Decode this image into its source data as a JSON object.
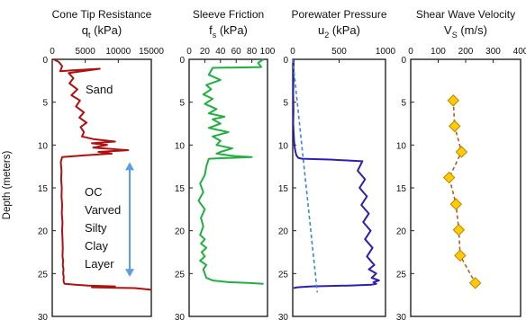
{
  "figure": {
    "y_axis_label": "Depth (meters)",
    "annotations": {
      "sand": "Sand",
      "clay_lines": [
        "OC",
        "Varved",
        "Silty",
        "Clay",
        "Layer"
      ]
    }
  },
  "chart_data": [
    {
      "type": "line",
      "title": "Cone Tip Resistance",
      "xlabel_main": "q",
      "xlabel_sub": "t",
      "xlabel_unit": "(kPa)",
      "xlim": [
        0,
        15000
      ],
      "xticks": [
        "0",
        "5000",
        "10000",
        "15000"
      ],
      "ylim": [
        0,
        30
      ],
      "yticks": [
        "0",
        "5",
        "10",
        "15",
        "20",
        "25",
        "30"
      ],
      "y_inverted": true,
      "series": [
        {
          "color": "#b01010",
          "x": [
            200,
            1000,
            1500,
            1200,
            2800,
            7200,
            2500,
            3200,
            2600,
            3800,
            2900,
            4200,
            3600,
            4800,
            4100,
            5200,
            4300,
            4800,
            4500,
            6200,
            9500,
            6000,
            8300,
            6200,
            11500,
            7000,
            9000,
            5000,
            1500,
            1300,
            1400,
            1350,
            1450,
            1400,
            1500,
            1450,
            1550,
            1500,
            1550,
            1600,
            1550,
            1650,
            1600,
            1700,
            1650,
            1750,
            1700,
            1750,
            1800,
            1900,
            3500,
            5500,
            9500,
            6000,
            12500,
            15000
          ],
          "y": [
            0.0,
            0.3,
            0.8,
            1.4,
            1.3,
            1.1,
            1.6,
            2.2,
            2.8,
            3.5,
            4.2,
            4.8,
            5.5,
            6.2,
            6.8,
            7.4,
            7.9,
            8.5,
            9.0,
            9.3,
            9.6,
            9.8,
            10.0,
            10.3,
            10.6,
            10.8,
            11.0,
            11.2,
            11.4,
            12.0,
            13.0,
            14.0,
            15.0,
            16.0,
            17.0,
            18.0,
            19.0,
            20.0,
            21.0,
            22.0,
            23.0,
            23.5,
            24.0,
            24.5,
            25.0,
            25.4,
            25.7,
            26.0,
            26.1,
            26.2,
            26.3,
            26.4,
            26.5,
            26.6,
            26.7,
            26.9
          ]
        }
      ]
    },
    {
      "type": "line",
      "title": "Sleeve Friction",
      "xlabel_main": "f",
      "xlabel_sub": "s",
      "xlabel_unit": "(kPa)",
      "xlim": [
        0,
        100
      ],
      "xticks": [
        "0",
        "20",
        "40",
        "60",
        "80",
        "100"
      ],
      "ylim": [
        0,
        30
      ],
      "yticks": [
        "0",
        "5",
        "10",
        "15",
        "20",
        "25",
        "30"
      ],
      "y_inverted": true,
      "series": [
        {
          "color": "#1fb040",
          "x": [
            95,
            88,
            92,
            30,
            25,
            40,
            22,
            28,
            18,
            30,
            20,
            35,
            25,
            45,
            30,
            40,
            25,
            50,
            30,
            40,
            35,
            55,
            40,
            35,
            50,
            60,
            80,
            25,
            22,
            20,
            14,
            18,
            12,
            20,
            15,
            18,
            14,
            20,
            15,
            22,
            16,
            20,
            14,
            22,
            18,
            20,
            22,
            30,
            50,
            75,
            95
          ],
          "y": [
            0.0,
            0.4,
            0.9,
            1.0,
            1.8,
            2.4,
            3.0,
            3.5,
            4.1,
            4.6,
            5.2,
            5.8,
            6.3,
            6.7,
            7.0,
            7.5,
            8.0,
            8.5,
            9.0,
            9.5,
            10.0,
            10.4,
            10.8,
            11.0,
            11.2,
            11.3,
            11.4,
            11.6,
            12.5,
            13.5,
            14.5,
            15.5,
            16.5,
            17.5,
            18.5,
            19.5,
            20.5,
            21.0,
            21.5,
            22.0,
            22.5,
            23.0,
            23.5,
            24.0,
            24.5,
            25.0,
            25.5,
            25.8,
            26.0,
            26.1,
            26.2
          ]
        }
      ]
    },
    {
      "type": "line",
      "title": "Porewater Pressure",
      "xlabel_main": "u",
      "xlabel_sub": "2",
      "xlabel_unit": "(kPa)",
      "xlim": [
        0,
        1000
      ],
      "xticks": [
        "0",
        "500",
        "1000"
      ],
      "ylim": [
        0,
        30
      ],
      "yticks": [
        "0",
        "5",
        "10",
        "15",
        "20",
        "25",
        "30"
      ],
      "y_inverted": true,
      "series": [
        {
          "color": "#2d1fb0",
          "x": [
            10,
            8,
            5,
            8,
            5,
            10,
            15,
            20,
            30,
            40,
            60,
            100,
            400,
            750,
            700,
            780,
            720,
            800,
            740,
            820,
            760,
            840,
            780,
            860,
            800,
            880,
            820,
            900,
            850,
            930,
            870,
            900,
            850,
            600,
            200,
            50,
            10
          ],
          "y": [
            0.0,
            2.0,
            4.0,
            6.0,
            7.5,
            8.5,
            9.5,
            10.2,
            10.8,
            11.2,
            11.5,
            11.6,
            11.7,
            11.9,
            13.0,
            14.0,
            15.0,
            16.0,
            17.0,
            18.0,
            19.0,
            20.0,
            21.0,
            22.0,
            23.0,
            24.0,
            24.5,
            25.0,
            25.5,
            25.8,
            26.0,
            26.2,
            26.3,
            26.4,
            26.5,
            26.6,
            26.7
          ]
        },
        {
          "name_hidden": "hydrostatic",
          "color": "#3a86d8",
          "dashed": true,
          "x": [
            0,
            265
          ],
          "y": [
            0.0,
            27.2
          ]
        }
      ]
    },
    {
      "type": "line",
      "title": "Shear Wave Velocity",
      "xlabel_main": "V",
      "xlabel_sub": "S",
      "xlabel_unit": "(m/s)",
      "xlim": [
        0,
        400
      ],
      "xticks": [
        "0",
        "100",
        "200",
        "300",
        "400"
      ],
      "ylim": [
        0,
        30
      ],
      "yticks": [
        "0",
        "5",
        "10",
        "15",
        "20",
        "25",
        "30"
      ],
      "y_inverted": true,
      "series": [
        {
          "color": "#b06020",
          "marker_color": "#ffcc00",
          "dashed": true,
          "x": [
            155,
            160,
            185,
            140,
            165,
            175,
            180,
            235
          ],
          "y": [
            4.8,
            7.8,
            10.8,
            13.8,
            16.9,
            19.9,
            22.9,
            26.1
          ]
        }
      ]
    }
  ]
}
